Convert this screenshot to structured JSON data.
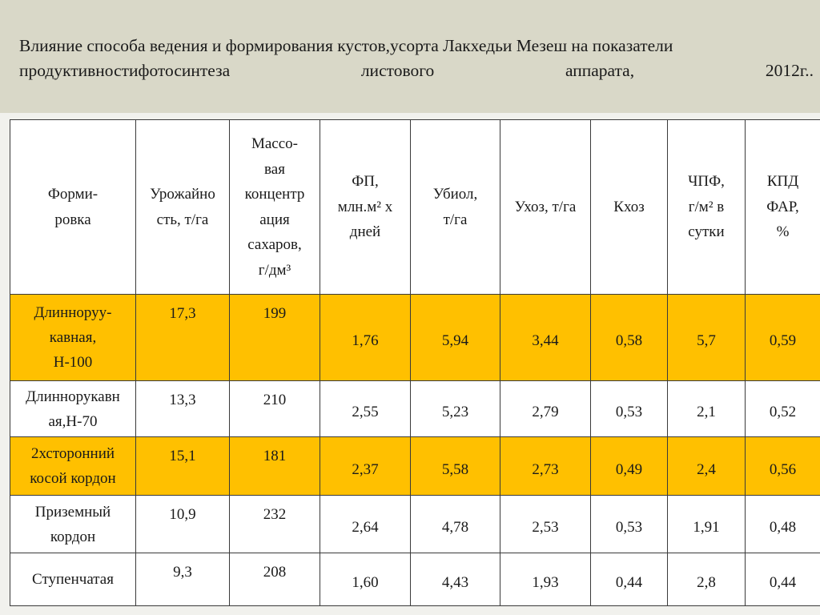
{
  "title": {
    "line1": "Влияние способа ведения и формирования кустов,усорта Лакхедьи Мезеш на показатели",
    "line2_words": [
      "продуктивностифотосинтеза",
      "листового",
      "аппарата,",
      "2012г.."
    ]
  },
  "table": {
    "headers": [
      "Форми-\nровка",
      "Урожайно\nсть, т/га",
      "Массо-\nвая\nконцентр\nация\nсахаров,\nг/дм³",
      "ФП,\nмлн.м² х\nдней",
      "Убиол,\nт/га",
      "Ухоз, т/га",
      "Кхоз",
      "ЧПФ,\nг/м² в\nсутки",
      "КПД\nФАР,\n%"
    ],
    "rows": [
      {
        "highlight": true,
        "cells": [
          "Длинноруу-\nкавная,\nН-100",
          "17,3",
          "199",
          "1,76",
          "5,94",
          "3,44",
          "0,58",
          "5,7",
          "0,59"
        ]
      },
      {
        "highlight": false,
        "cells": [
          "Длиннорукавн\nая,Н-70",
          "13,3",
          "210",
          "2,55",
          "5,23",
          "2,79",
          "0,53",
          "2,1",
          "0,52"
        ]
      },
      {
        "highlight": true,
        "cells": [
          "2хсторонний\nкосой кордон",
          "15,1",
          "181",
          "2,37",
          "5,58",
          "2,73",
          "0,49",
          "2,4",
          "0,56"
        ]
      },
      {
        "highlight": false,
        "cells": [
          "Приземный\nкордон",
          "10,9",
          "232",
          "2,64",
          "4,78",
          "2,53",
          "0,53",
          "1,91",
          "0,48"
        ]
      },
      {
        "highlight": false,
        "cells": [
          "Ступенчатая",
          "9,3",
          "208",
          "1,60",
          "4,43",
          "1,93",
          "0,44",
          "2,8",
          "0,44"
        ]
      }
    ]
  },
  "colors": {
    "highlight_row": "#ffc000",
    "title_band": "#d9d8c8",
    "page_background": "#f1f1ed"
  }
}
